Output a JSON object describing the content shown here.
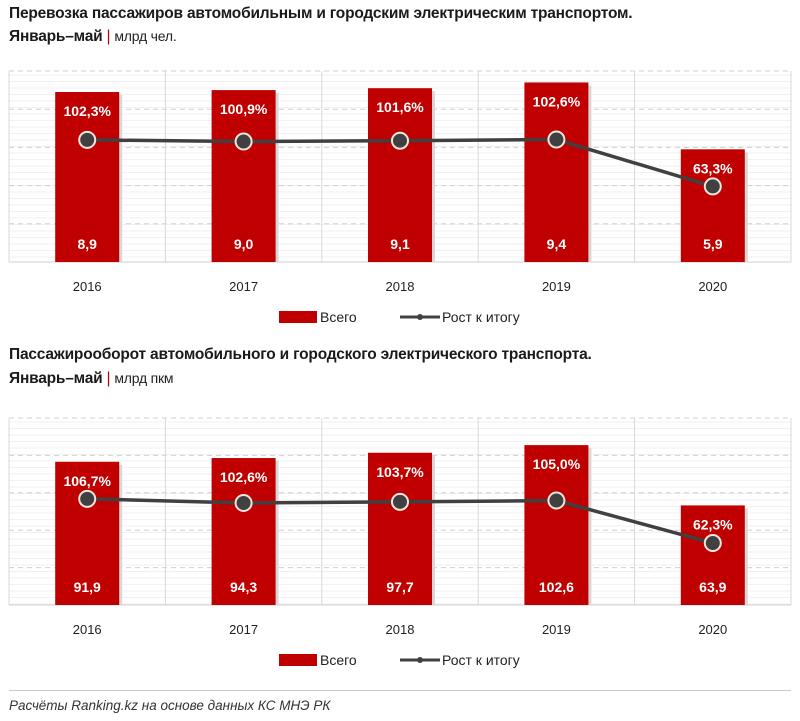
{
  "chart_data": [
    {
      "type": "bar+line",
      "title": "Перевозка пассажиров автомобильным и городским электрическим транспортом.",
      "period": "Январь–май",
      "unit": "млрд чел.",
      "categories": [
        "2016",
        "2017",
        "2018",
        "2019",
        "2020"
      ],
      "series": [
        {
          "name": "Всего",
          "type": "bar",
          "color": "#c00000",
          "values": [
            8.9,
            9.0,
            9.1,
            9.4,
            5.9
          ],
          "labels": [
            "8,9",
            "9,0",
            "9,1",
            "9,4",
            "5,9"
          ]
        },
        {
          "name": "Рост к итогу",
          "type": "line",
          "color": "#404040",
          "values": [
            102.3,
            100.9,
            101.6,
            102.6,
            63.3
          ],
          "labels": [
            "102,3%",
            "100,9%",
            "101,6%",
            "102,6%",
            "63,3%"
          ]
        }
      ],
      "ylim": [
        0,
        10
      ],
      "y2lim": [
        0,
        160
      ],
      "grid": true,
      "legend": "bottom"
    },
    {
      "type": "bar+line",
      "title": "Пассажирооборот автомобильного и городского электрического транспорта.",
      "period": "Январь–май",
      "unit": "млрд пкм",
      "categories": [
        "2016",
        "2017",
        "2018",
        "2019",
        "2020"
      ],
      "series": [
        {
          "name": "Всего",
          "type": "bar",
          "color": "#c00000",
          "values": [
            91.9,
            94.3,
            97.7,
            102.6,
            63.9
          ],
          "labels": [
            "91,9",
            "94,3",
            "97,7",
            "102,6",
            "63,9"
          ]
        },
        {
          "name": "Рост к итогу",
          "type": "line",
          "color": "#404040",
          "values": [
            106.7,
            102.6,
            103.7,
            105.0,
            62.3
          ],
          "labels": [
            "106,7%",
            "102,6%",
            "103,7%",
            "105,0%",
            "62,3%"
          ]
        }
      ],
      "ylim": [
        0,
        120
      ],
      "y2lim": [
        0,
        188
      ],
      "grid": true,
      "legend": "bottom"
    }
  ],
  "source": "Расчёты Ranking.kz на основе данных КС МНЭ РК"
}
